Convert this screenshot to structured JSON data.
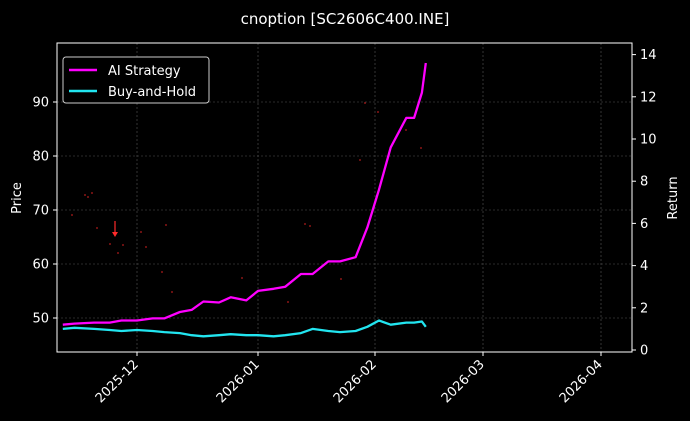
{
  "chart_data": {
    "type": "line",
    "title": "cnoption [SC2606C400.INE]",
    "xlabel": "",
    "ylabel": "Price",
    "ylabel_right": "Return",
    "x_ticks": [
      "2025-12",
      "2026-01",
      "2026-02",
      "2026-03",
      "2026-04"
    ],
    "y_ticks_left": [
      50,
      60,
      70,
      80,
      90
    ],
    "y_ticks_right": [
      0,
      2,
      4,
      6,
      8,
      10,
      12,
      14
    ],
    "ylim_left": [
      44,
      100
    ],
    "ylim_right": [
      0,
      14.2
    ],
    "grid": true,
    "legend_position": "upper left",
    "legend": [
      "AI Strategy",
      "Buy-and-Hold"
    ],
    "colors": {
      "ai_strategy": "#ff00ff",
      "buy_hold": "#22e5f0",
      "signal": "#ff2a2a",
      "background": "#000000",
      "grid": "#555555"
    },
    "series": [
      {
        "name": "AI Strategy",
        "axis": "right",
        "x": [
          "2025-11-12",
          "2025-11-15",
          "2025-11-20",
          "2025-11-24",
          "2025-11-27",
          "2025-12-01",
          "2025-12-05",
          "2025-12-08",
          "2025-12-12",
          "2025-12-15",
          "2025-12-18",
          "2025-12-22",
          "2025-12-25",
          "2025-12-29",
          "2026-01-01",
          "2026-01-05",
          "2026-01-08",
          "2026-01-12",
          "2026-01-15",
          "2026-01-19",
          "2026-01-22",
          "2026-01-26",
          "2026-01-29",
          "2026-02-01",
          "2026-02-04",
          "2026-02-08",
          "2026-02-10",
          "2026-02-12",
          "2026-02-13"
        ],
        "values": [
          1.2,
          1.25,
          1.3,
          1.3,
          1.4,
          1.4,
          1.5,
          1.5,
          1.8,
          1.9,
          2.3,
          2.25,
          2.5,
          2.35,
          2.8,
          2.9,
          3.0,
          3.6,
          3.6,
          4.2,
          4.2,
          4.4,
          5.8,
          7.6,
          9.6,
          11.0,
          11.0,
          12.2,
          13.6
        ]
      },
      {
        "name": "Buy-and-Hold",
        "axis": "right",
        "x": [
          "2025-11-12",
          "2025-11-15",
          "2025-11-20",
          "2025-11-24",
          "2025-11-27",
          "2025-12-01",
          "2025-12-05",
          "2025-12-08",
          "2025-12-12",
          "2025-12-15",
          "2025-12-18",
          "2025-12-22",
          "2025-12-25",
          "2025-12-29",
          "2026-01-01",
          "2026-01-05",
          "2026-01-08",
          "2026-01-12",
          "2026-01-15",
          "2026-01-19",
          "2026-01-22",
          "2026-01-26",
          "2026-01-29",
          "2026-02-01",
          "2026-02-04",
          "2026-02-08",
          "2026-02-10",
          "2026-02-12",
          "2026-02-13"
        ],
        "values": [
          1.0,
          1.05,
          1.0,
          0.95,
          0.9,
          0.95,
          0.9,
          0.85,
          0.8,
          0.7,
          0.65,
          0.7,
          0.75,
          0.7,
          0.7,
          0.65,
          0.7,
          0.8,
          1.0,
          0.9,
          0.85,
          0.9,
          1.1,
          1.4,
          1.2,
          1.3,
          1.3,
          1.35,
          1.1
        ]
      }
    ],
    "annotations": [
      {
        "type": "arrow",
        "color": "#ff2a2a",
        "x": "2025-11-24",
        "direction": "down",
        "from_price": 67.5,
        "to_price": 64
      }
    ]
  },
  "legend": {
    "items": [
      {
        "label": "AI Strategy",
        "color": "#ff00ff"
      },
      {
        "label": "Buy-and-Hold",
        "color": "#22e5f0"
      }
    ]
  }
}
